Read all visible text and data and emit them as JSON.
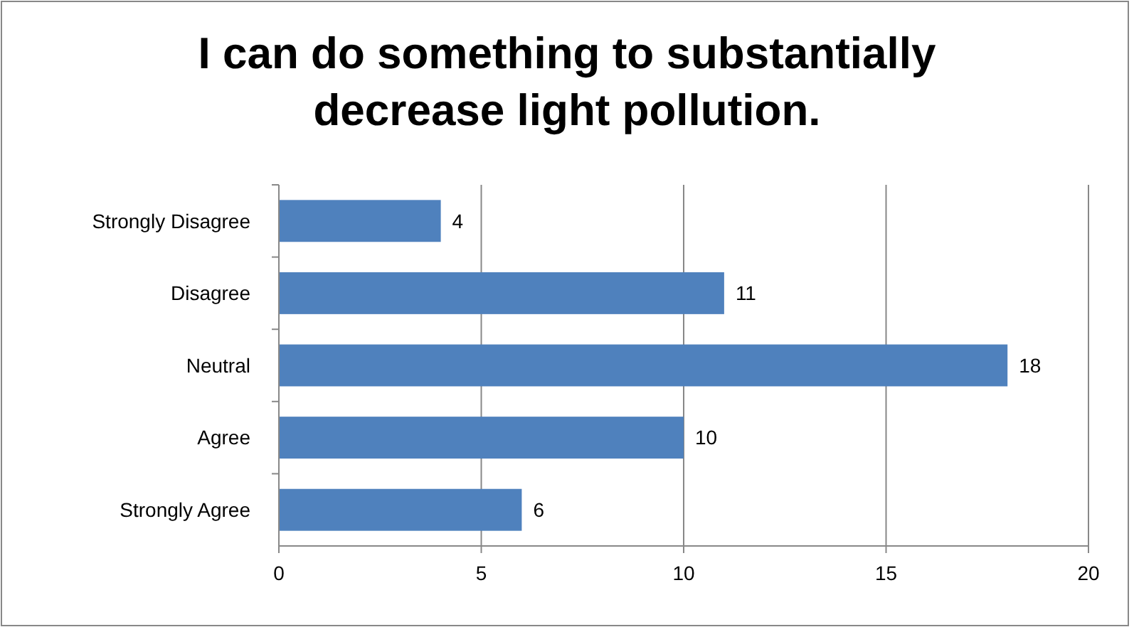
{
  "chart_data": {
    "type": "bar",
    "orientation": "horizontal",
    "title": "I can do something to substantially decrease light pollution.",
    "categories": [
      "Strongly Disagree",
      "Disagree",
      "Neutral",
      "Agree",
      "Strongly Agree"
    ],
    "values": [
      4,
      11,
      18,
      10,
      6
    ],
    "color": "#4f81bd",
    "xlim": [
      0,
      20
    ],
    "xticks": [
      0,
      5,
      10,
      15,
      20
    ],
    "grid": "x",
    "data_labels": true
  }
}
